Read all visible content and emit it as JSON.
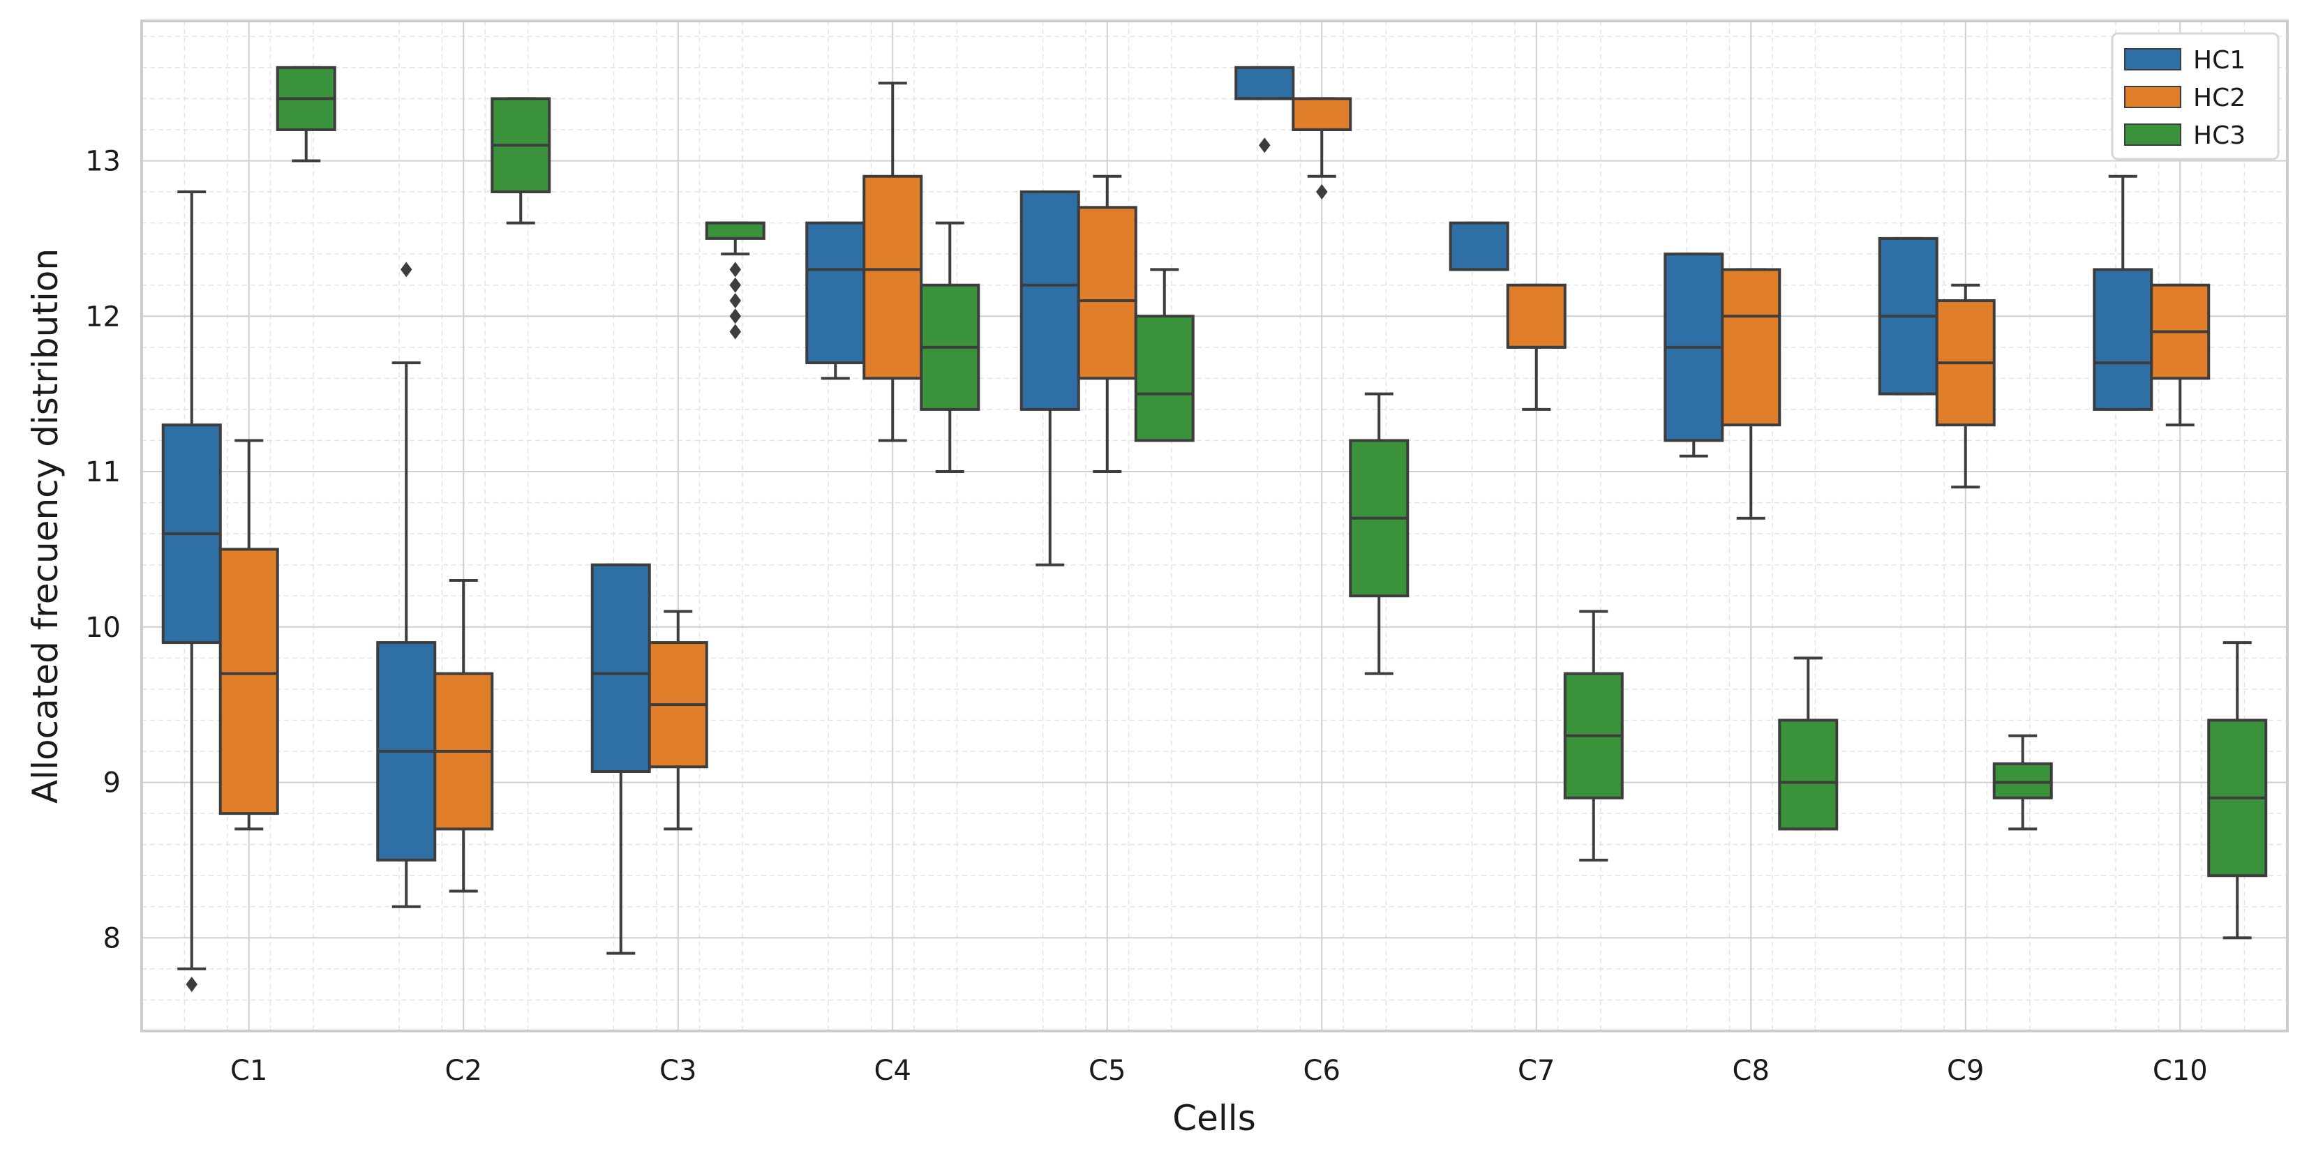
{
  "chart_data": {
    "type": "box",
    "xlabel": "Cells",
    "ylabel": "Allocated frecuency distribution",
    "ylim": [
      7.4,
      13.9
    ],
    "yticks": [
      8,
      9,
      10,
      11,
      12,
      13
    ],
    "grid": true,
    "legend_position": "top-right",
    "categories": [
      "C1",
      "C2",
      "C3",
      "C4",
      "C5",
      "C6",
      "C7",
      "C8",
      "C9",
      "C10"
    ],
    "series": [
      {
        "name": "HC1",
        "color": "#2e6fa6",
        "boxes": [
          {
            "whislo": 7.8,
            "q1": 9.9,
            "med": 10.6,
            "q3": 11.3,
            "whishi": 12.8,
            "fliers": [
              7.7
            ]
          },
          {
            "whislo": 8.2,
            "q1": 8.5,
            "med": 9.2,
            "q3": 9.9,
            "whishi": 11.7,
            "fliers": [
              12.3
            ]
          },
          {
            "whislo": 7.9,
            "q1": 9.07,
            "med": 9.7,
            "q3": 10.4,
            "whishi": 10.4,
            "fliers": []
          },
          {
            "whislo": 11.6,
            "q1": 11.7,
            "med": 12.3,
            "q3": 12.6,
            "whishi": 12.6,
            "fliers": []
          },
          {
            "whislo": 10.4,
            "q1": 11.4,
            "med": 12.2,
            "q3": 12.8,
            "whishi": 12.8,
            "fliers": []
          },
          {
            "whislo": 13.4,
            "q1": 13.4,
            "med": 13.4,
            "q3": 13.6,
            "whishi": 13.6,
            "fliers": [
              13.1
            ]
          },
          {
            "whislo": 12.3,
            "q1": 12.3,
            "med": 12.3,
            "q3": 12.6,
            "whishi": 12.6,
            "fliers": []
          },
          {
            "whislo": 11.1,
            "q1": 11.2,
            "med": 11.8,
            "q3": 12.4,
            "whishi": 12.4,
            "fliers": []
          },
          {
            "whislo": 11.5,
            "q1": 11.5,
            "med": 12.0,
            "q3": 12.5,
            "whishi": 12.5,
            "fliers": []
          },
          {
            "whislo": 11.4,
            "q1": 11.4,
            "med": 11.7,
            "q3": 12.3,
            "whishi": 12.9,
            "fliers": []
          }
        ]
      },
      {
        "name": "HC2",
        "color": "#e07e2a",
        "boxes": [
          {
            "whislo": 8.7,
            "q1": 8.8,
            "med": 9.7,
            "q3": 10.5,
            "whishi": 11.2,
            "fliers": []
          },
          {
            "whislo": 8.3,
            "q1": 8.7,
            "med": 9.2,
            "q3": 9.7,
            "whishi": 10.3,
            "fliers": []
          },
          {
            "whislo": 8.7,
            "q1": 9.1,
            "med": 9.5,
            "q3": 9.9,
            "whishi": 10.1,
            "fliers": []
          },
          {
            "whislo": 11.2,
            "q1": 11.6,
            "med": 12.3,
            "q3": 12.9,
            "whishi": 13.5,
            "fliers": []
          },
          {
            "whislo": 11.0,
            "q1": 11.6,
            "med": 12.1,
            "q3": 12.7,
            "whishi": 12.9,
            "fliers": []
          },
          {
            "whislo": 12.9,
            "q1": 13.2,
            "med": 13.2,
            "q3": 13.4,
            "whishi": 13.4,
            "fliers": [
              12.8
            ]
          },
          {
            "whislo": 11.4,
            "q1": 11.8,
            "med": 11.8,
            "q3": 12.2,
            "whishi": 12.2,
            "fliers": []
          },
          {
            "whislo": 10.7,
            "q1": 11.3,
            "med": 12.0,
            "q3": 12.3,
            "whishi": 12.3,
            "fliers": []
          },
          {
            "whislo": 10.9,
            "q1": 11.3,
            "med": 11.7,
            "q3": 12.1,
            "whishi": 12.2,
            "fliers": []
          },
          {
            "whislo": 11.3,
            "q1": 11.6,
            "med": 11.9,
            "q3": 12.2,
            "whishi": 12.2,
            "fliers": []
          }
        ]
      },
      {
        "name": "HC3",
        "color": "#3a923a",
        "boxes": [
          {
            "whislo": 13.0,
            "q1": 13.2,
            "med": 13.4,
            "q3": 13.6,
            "whishi": 13.6,
            "fliers": []
          },
          {
            "whislo": 12.6,
            "q1": 12.8,
            "med": 13.1,
            "q3": 13.4,
            "whishi": 13.4,
            "fliers": []
          },
          {
            "whislo": 12.4,
            "q1": 12.5,
            "med": 12.6,
            "q3": 12.6,
            "whishi": 12.6,
            "fliers": [
              12.3,
              12.2,
              12.1,
              12.0,
              11.9
            ]
          },
          {
            "whislo": 11.0,
            "q1": 11.4,
            "med": 11.8,
            "q3": 12.2,
            "whishi": 12.6,
            "fliers": []
          },
          {
            "whislo": 11.2,
            "q1": 11.2,
            "med": 11.5,
            "q3": 12.0,
            "whishi": 12.3,
            "fliers": []
          },
          {
            "whislo": 9.7,
            "q1": 10.2,
            "med": 10.7,
            "q3": 11.2,
            "whishi": 11.5,
            "fliers": []
          },
          {
            "whislo": 8.5,
            "q1": 8.9,
            "med": 9.3,
            "q3": 9.7,
            "whishi": 10.1,
            "fliers": []
          },
          {
            "whislo": 8.7,
            "q1": 8.7,
            "med": 9.0,
            "q3": 9.4,
            "whishi": 9.8,
            "fliers": []
          },
          {
            "whislo": 8.7,
            "q1": 8.9,
            "med": 9.0,
            "q3": 9.12,
            "whishi": 9.3,
            "fliers": []
          },
          {
            "whislo": 8.0,
            "q1": 8.4,
            "med": 8.9,
            "q3": 9.4,
            "whishi": 9.9,
            "fliers": []
          }
        ]
      }
    ]
  }
}
